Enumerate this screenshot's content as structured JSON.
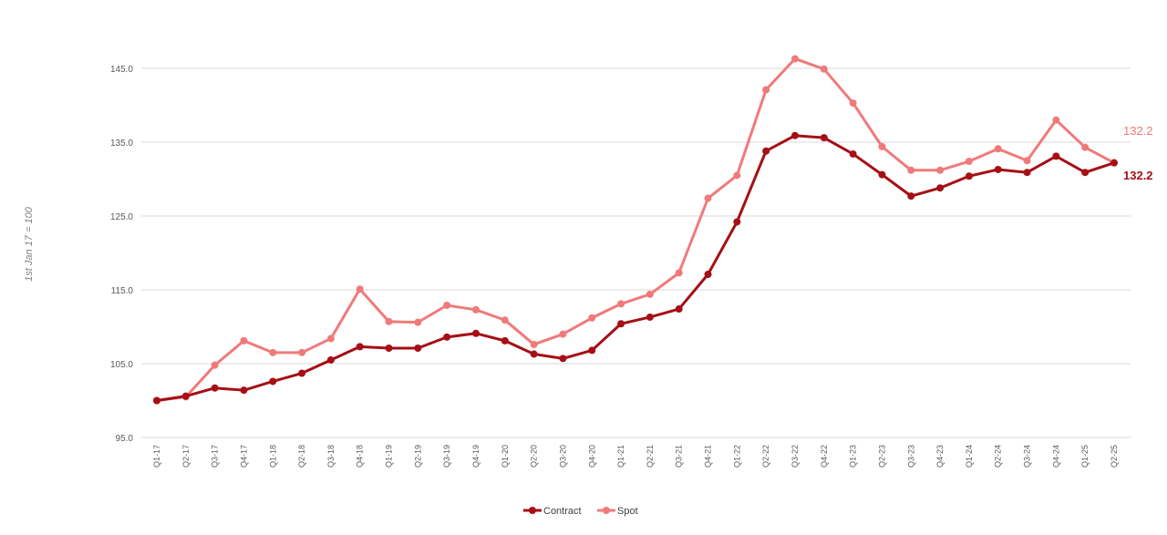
{
  "chart_data": {
    "type": "line",
    "title": "",
    "ylabel": "1st Jan 17 = 100",
    "xlabel": "",
    "ylim": [
      95.0,
      145.0
    ],
    "yticks": [
      "95.0",
      "105.0",
      "115.0",
      "125.0",
      "135.0",
      "145.0"
    ],
    "ytick_values": [
      95,
      105,
      115,
      125,
      135,
      145
    ],
    "grid": true,
    "legend_position": "bottom",
    "categories": [
      "Q1-17",
      "Q2-17",
      "Q3-17",
      "Q4-17",
      "Q1-18",
      "Q2-18",
      "Q3-18",
      "Q4-18",
      "Q1-19",
      "Q2-19",
      "Q3-19",
      "Q4-19",
      "Q1-20",
      "Q2-20",
      "Q3-20",
      "Q4-20",
      "Q1-21",
      "Q2-21",
      "Q3-21",
      "Q4-21",
      "Q1-22",
      "Q2-22",
      "Q3-22",
      "Q4-22",
      "Q1-23",
      "Q2-23",
      "Q3-23",
      "Q4-23",
      "Q1-24",
      "Q2-24",
      "Q3-24",
      "Q4-24",
      "Q1-25",
      "Q2-25"
    ],
    "series": [
      {
        "name": "Contract",
        "color": "#a50f15",
        "values": [
          100.0,
          100.6,
          101.7,
          101.4,
          102.6,
          103.7,
          105.5,
          107.3,
          107.1,
          107.1,
          108.6,
          109.1,
          108.1,
          106.3,
          105.7,
          106.8,
          110.4,
          111.3,
          112.4,
          117.1,
          124.2,
          133.8,
          135.9,
          135.6,
          133.4,
          130.6,
          127.7,
          128.8,
          130.4,
          131.3,
          130.9,
          133.1,
          130.9,
          132.2
        ],
        "end_label": "132.2"
      },
      {
        "name": "Spot",
        "color": "#f07a7a",
        "values": [
          100.0,
          100.5,
          104.8,
          108.1,
          106.5,
          106.5,
          108.4,
          115.1,
          110.7,
          110.6,
          112.9,
          112.3,
          110.9,
          107.6,
          109.0,
          111.2,
          113.1,
          114.4,
          117.3,
          127.4,
          130.5,
          142.1,
          146.3,
          144.9,
          140.3,
          134.4,
          131.2,
          131.2,
          132.4,
          134.1,
          132.5,
          138.0,
          134.3,
          132.2
        ],
        "end_label": "132.2"
      }
    ]
  }
}
